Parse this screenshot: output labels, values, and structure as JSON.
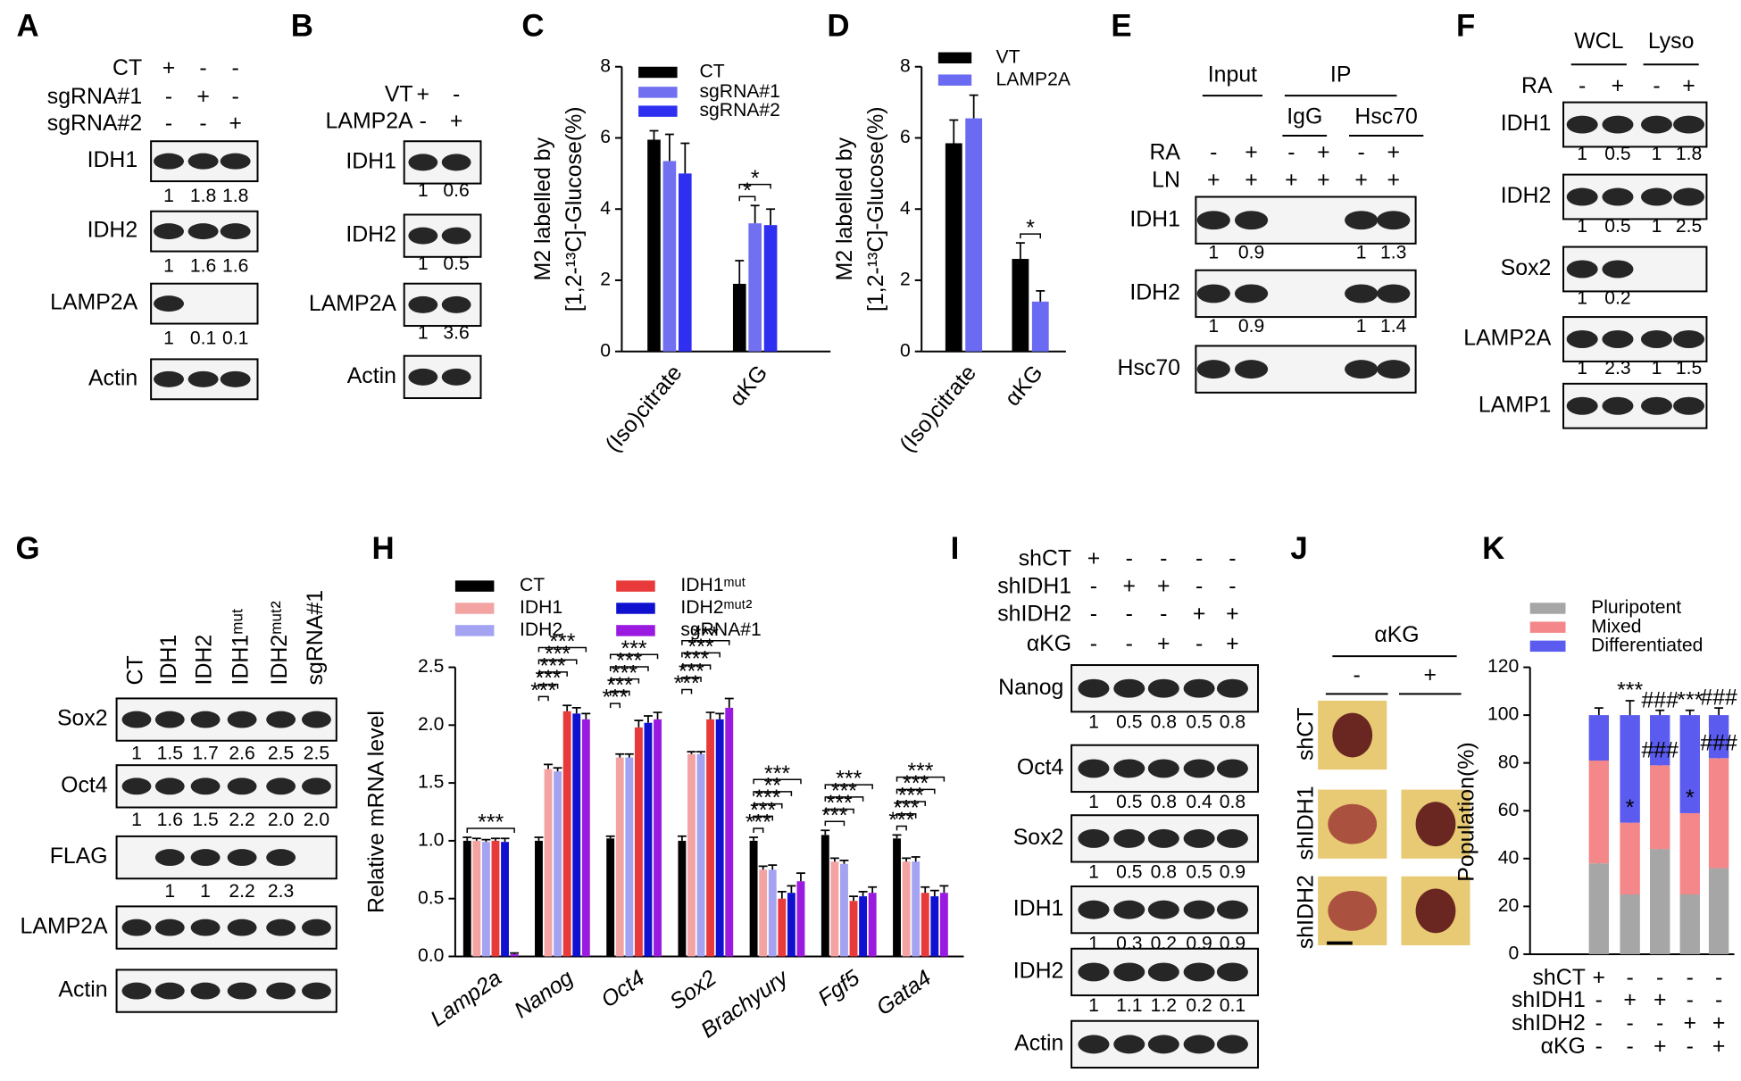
{
  "chart_data": [
    {
      "type": "bar",
      "panel": "C",
      "y_label": [
        "M2 labelled by",
        "[1,2-¹³C]-Glucose(%)"
      ],
      "categories": [
        "(Iso)citrate",
        "αKG"
      ],
      "series": [
        {
          "name": "CT",
          "color": "#000000",
          "values": [
            5.95,
            1.9
          ],
          "errors": [
            0.25,
            0.65
          ]
        },
        {
          "name": "sgRNA#1",
          "color": "#7070f0",
          "values": [
            5.35,
            3.6
          ],
          "errors": [
            0.75,
            0.5
          ]
        },
        {
          "name": "sgRNA#2",
          "color": "#2f2ff2",
          "values": [
            5.0,
            3.55
          ],
          "errors": [
            0.85,
            0.45
          ]
        }
      ],
      "ylim": [
        0,
        8
      ],
      "yticks": [
        0,
        2,
        4,
        6,
        8
      ],
      "significance": [
        [],
        [
          "*",
          "*"
        ]
      ]
    },
    {
      "type": "bar",
      "panel": "D",
      "y_label": [
        "M2 labelled by",
        "[1,2-¹³C]-Glucose(%)"
      ],
      "categories": [
        "(Iso)citrate",
        "αKG"
      ],
      "series": [
        {
          "name": "VT",
          "color": "#000000",
          "values": [
            5.85,
            2.6
          ],
          "errors": [
            0.65,
            0.45
          ]
        },
        {
          "name": "LAMP2A",
          "color": "#6a6af2",
          "values": [
            6.55,
            1.4
          ],
          "errors": [
            0.65,
            0.3
          ]
        }
      ],
      "ylim": [
        0,
        8
      ],
      "yticks": [
        0,
        2,
        4,
        6,
        8
      ],
      "significance": [
        [],
        [
          "*"
        ]
      ]
    },
    {
      "type": "bar",
      "panel": "H",
      "y_label": [
        "Relative mRNA level"
      ],
      "categories": [
        "Lamp2a",
        "Nanog",
        "Oct4",
        "Sox2",
        "Brachyury",
        "Fgf5",
        "Gata4"
      ],
      "series": [
        {
          "name": "CT",
          "color": "#000000",
          "values": [
            1.0,
            1.0,
            1.02,
            1.0,
            1.0,
            1.05,
            1.02
          ],
          "errors": [
            0.03,
            0.03,
            0.02,
            0.04,
            0.03,
            0.04,
            0.03
          ]
        },
        {
          "name": "IDH1",
          "color": "#f4a3a3",
          "values": [
            1.0,
            1.62,
            1.72,
            1.75,
            0.75,
            0.82,
            0.82
          ],
          "errors": [
            0.02,
            0.04,
            0.03,
            0.02,
            0.03,
            0.03,
            0.03
          ]
        },
        {
          "name": "IDH2",
          "color": "#a3a3f2",
          "values": [
            0.99,
            1.6,
            1.72,
            1.75,
            0.75,
            0.8,
            0.82
          ],
          "errors": [
            0.02,
            0.03,
            0.03,
            0.02,
            0.04,
            0.03,
            0.04
          ]
        },
        {
          "name": "IDH1ᵐᵘᵗ",
          "color": "#e83a3a",
          "values": [
            1.0,
            2.12,
            1.98,
            2.05,
            0.5,
            0.48,
            0.55
          ],
          "errors": [
            0.02,
            0.05,
            0.06,
            0.06,
            0.06,
            0.04,
            0.05
          ]
        },
        {
          "name": "IDH2ᵐᵘᵗ²",
          "color": "#1010d0",
          "values": [
            0.99,
            2.1,
            2.02,
            2.05,
            0.55,
            0.52,
            0.52
          ],
          "errors": [
            0.03,
            0.05,
            0.06,
            0.05,
            0.06,
            0.04,
            0.05
          ]
        },
        {
          "name": "sgRNA#1",
          "color": "#9a1ae0",
          "values": [
            0.02,
            2.05,
            2.05,
            2.15,
            0.65,
            0.55,
            0.55
          ],
          "errors": [
            0.01,
            0.05,
            0.06,
            0.08,
            0.07,
            0.05,
            0.06
          ]
        }
      ],
      "ylim": [
        0,
        2.5
      ],
      "yticks": [
        {
          "value": 0,
          "label": "0.0"
        },
        {
          "value": 0.5,
          "label": "0.5"
        },
        {
          "value": 1,
          "label": "1.0"
        },
        {
          "value": 1.5,
          "label": "1.5"
        },
        {
          "value": 2,
          "label": "2.0"
        },
        {
          "value": 2.5,
          "label": "2.5"
        }
      ],
      "significance": [
        [
          "***"
        ],
        [
          "***",
          "***",
          "***",
          "***",
          "***"
        ],
        [
          "***",
          "***",
          "***",
          "***",
          "***"
        ],
        [
          "***",
          "***",
          "***",
          "***",
          "***"
        ],
        [
          "***",
          "**",
          "***",
          "***",
          "***"
        ],
        [
          "***",
          "***",
          "***",
          "***"
        ],
        [
          "***",
          "***",
          "***",
          "***",
          "***"
        ]
      ]
    },
    {
      "type": "stacked_bar",
      "panel": "K",
      "y_label": [
        "Population(%)"
      ],
      "categories": [
        null,
        null,
        null,
        null,
        null
      ],
      "series": [
        {
          "name": "Pluripotent",
          "color": "#a6a6a6",
          "values": [
            38,
            25,
            44,
            25,
            36
          ],
          "errors": [
            2,
            3,
            2,
            3,
            2
          ]
        },
        {
          "name": "Mixed",
          "color": "#f4878a",
          "values": [
            43,
            30,
            35,
            34,
            46
          ],
          "errors": [
            2,
            2,
            2,
            2,
            2
          ]
        },
        {
          "name": "Differentiated",
          "color": "#5b5bef",
          "values": [
            19,
            45,
            21,
            41,
            18
          ],
          "errors": [
            3,
            6,
            2,
            2,
            3
          ]
        }
      ],
      "ylim": [
        0,
        120
      ],
      "yticks": [
        0,
        20,
        40,
        60,
        80,
        100,
        120
      ],
      "conditions": [
        {
          "label": "shCT",
          "signs": [
            "+",
            "-",
            "-",
            "-",
            "-"
          ]
        },
        {
          "label": "shIDH1",
          "signs": [
            "-",
            "+",
            "+",
            "-",
            "-"
          ]
        },
        {
          "label": "shIDH2",
          "signs": [
            "-",
            "-",
            "-",
            "+",
            "+"
          ]
        },
        {
          "label": "αKG",
          "signs": [
            "-",
            "-",
            "+",
            "-",
            "+"
          ]
        }
      ],
      "significance": [
        [],
        [
          "***",
          "*"
        ],
        [
          "###",
          "###"
        ],
        [
          "***",
          "*"
        ],
        [
          "###",
          "###"
        ]
      ]
    }
  ],
  "blot_panels": [
    {
      "panel": "A",
      "conditions": [
        {
          "label": "CT",
          "signs": [
            "+",
            "-",
            "-"
          ]
        },
        {
          "label": "sgRNA#1",
          "signs": [
            "-",
            "+",
            "-"
          ]
        },
        {
          "label": "sgRNA#2",
          "signs": [
            "-",
            "-",
            "+"
          ]
        }
      ],
      "blots": [
        {
          "label": "IDH1",
          "quant": [
            "1",
            "1.8",
            "1.8"
          ]
        },
        {
          "label": "IDH2",
          "quant": [
            "1",
            "1.6",
            "1.6"
          ]
        },
        {
          "label": "LAMP2A",
          "quant": [
            "1",
            "0.1",
            "0.1"
          ]
        },
        {
          "label": "Actin"
        }
      ]
    },
    {
      "panel": "B",
      "conditions": [
        {
          "label": "VT",
          "signs": [
            "+",
            "-"
          ]
        },
        {
          "label": "LAMP2A",
          "signs": [
            "-",
            "+"
          ]
        }
      ],
      "blots": [
        {
          "label": "IDH1",
          "quant": [
            "1",
            "0.6"
          ]
        },
        {
          "label": "IDH2",
          "quant": [
            "1",
            "0.5"
          ]
        },
        {
          "label": "LAMP2A",
          "quant": [
            "1",
            "3.6"
          ]
        },
        {
          "label": "Actin"
        }
      ]
    },
    {
      "panel": "E",
      "groups": [
        {
          "label": "Input"
        },
        {
          "label": "IP"
        }
      ],
      "subgroups": [
        {
          "label": "IgG"
        },
        {
          "label": "Hsc70"
        }
      ],
      "conditions": [
        {
          "label": "RA",
          "signs": [
            "-",
            "+",
            "-",
            "+",
            "-",
            "+"
          ]
        },
        {
          "label": "LN",
          "signs": [
            "+",
            "+",
            "+",
            "+",
            "+",
            "+"
          ]
        }
      ],
      "blots": [
        {
          "label": "IDH1",
          "quant": [
            "1",
            "0.9",
            null,
            null,
            "1",
            "1.3"
          ]
        },
        {
          "label": "IDH2",
          "quant": [
            "1",
            "0.9",
            null,
            null,
            "1",
            "1.4"
          ]
        },
        {
          "label": "Hsc70"
        }
      ]
    },
    {
      "panel": "F",
      "groups": [
        {
          "label": "WCL"
        },
        {
          "label": "Lyso"
        }
      ],
      "conditions": [
        {
          "label": "RA",
          "signs": [
            "-",
            "+",
            "-",
            "+"
          ]
        }
      ],
      "blots": [
        {
          "label": "IDH1",
          "quant": [
            "1",
            "0.5",
            "1",
            "1.8"
          ]
        },
        {
          "label": "IDH2",
          "quant": [
            "1",
            "0.5",
            "1",
            "2.5"
          ]
        },
        {
          "label": "Sox2",
          "quant": [
            "1",
            "0.2",
            null,
            null
          ]
        },
        {
          "label": "LAMP2A",
          "quant": [
            "1",
            "2.3",
            "1",
            "1.5"
          ]
        },
        {
          "label": "LAMP1"
        }
      ]
    },
    {
      "panel": "G",
      "lanes": [
        "CT",
        "IDH1",
        "IDH2",
        "IDH1ᵐᵘᵗ",
        "IDH2ᵐᵘᵗ²",
        "sgRNA#1"
      ],
      "blots": [
        {
          "label": "Sox2",
          "quant": [
            "1",
            "1.5",
            "1.7",
            "2.6",
            "2.5",
            "2.5"
          ]
        },
        {
          "label": "Oct4",
          "quant": [
            "1",
            "1.6",
            "1.5",
            "2.2",
            "2.0",
            "2.0"
          ]
        },
        {
          "label": "FLAG",
          "quant": [
            null,
            "1",
            "1",
            "2.2",
            "2.3",
            null
          ]
        },
        {
          "label": "LAMP2A"
        },
        {
          "label": "Actin"
        }
      ]
    },
    {
      "panel": "I",
      "conditions": [
        {
          "label": "shCT",
          "signs": [
            "+",
            "-",
            "-",
            "-",
            "-"
          ]
        },
        {
          "label": "shIDH1",
          "signs": [
            "-",
            "+",
            "+",
            "-",
            "-"
          ]
        },
        {
          "label": "shIDH2",
          "signs": [
            "-",
            "-",
            "-",
            "+",
            "+"
          ]
        },
        {
          "label": "αKG",
          "signs": [
            "-",
            "-",
            "+",
            "-",
            "+"
          ]
        }
      ],
      "blots": [
        {
          "label": "Nanog",
          "quant": [
            "1",
            "0.5",
            "0.8",
            "0.5",
            "0.8"
          ]
        },
        {
          "label": "Oct4",
          "quant": [
            "1",
            "0.5",
            "0.8",
            "0.4",
            "0.8"
          ]
        },
        {
          "label": "Sox2",
          "quant": [
            "1",
            "0.5",
            "0.8",
            "0.5",
            "0.9"
          ]
        },
        {
          "label": "IDH1",
          "quant": [
            "1",
            "0.3",
            "0.2",
            "0.9",
            "0.9"
          ]
        },
        {
          "label": "IDH2",
          "quant": [
            "1",
            "1.1",
            "1.2",
            "0.2",
            "0.1"
          ]
        },
        {
          "label": "Actin"
        }
      ]
    }
  ],
  "image_panel": {
    "panel": "J",
    "group": "αKG",
    "columns": [
      "-",
      "+"
    ],
    "rows": [
      "shCT",
      "shIDH1",
      "shIDH2"
    ]
  }
}
